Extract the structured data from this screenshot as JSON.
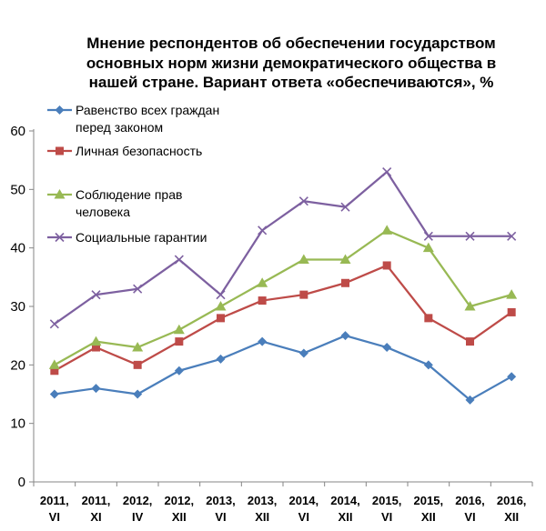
{
  "chart_data": {
    "type": "line",
    "title_lines": [
      "Мнение респондентов об обеспечении государством",
      "основных норм жизни демократического общества в",
      "нашей стране. Вариант ответа «обеспечиваются», %"
    ],
    "categories": [
      [
        "2011,",
        "VI"
      ],
      [
        "2011,",
        "XI"
      ],
      [
        "2012,",
        "IV"
      ],
      [
        "2012,",
        "XII"
      ],
      [
        "2013,",
        "VI"
      ],
      [
        "2013,",
        "XII"
      ],
      [
        "2014,",
        "VI"
      ],
      [
        "2014,",
        "XII"
      ],
      [
        "2015,",
        "VI"
      ],
      [
        "2015,",
        "XII"
      ],
      [
        "2016,",
        "VI"
      ],
      [
        "2016,",
        "XII"
      ]
    ],
    "ylim": [
      0,
      60
    ],
    "yticks": [
      "0",
      "10",
      "20",
      "30",
      "40",
      "50",
      "60"
    ],
    "grid": false,
    "legend_position": "top-left",
    "series": [
      {
        "name_lines": [
          "Равенство всех граждан",
          "перед законом"
        ],
        "color": "#4A7EBB",
        "marker": "diamond",
        "values": [
          15,
          16,
          15,
          19,
          21,
          24,
          22,
          25,
          23,
          20,
          14,
          18
        ]
      },
      {
        "name_lines": [
          "Личная безопасность"
        ],
        "color": "#BE4B48",
        "marker": "square",
        "values": [
          19,
          23,
          20,
          24,
          28,
          31,
          32,
          34,
          37,
          28,
          24,
          29
        ]
      },
      {
        "name_lines": [
          "Соблюдение прав",
          "человека"
        ],
        "color": "#98B954",
        "marker": "triangle",
        "values": [
          20,
          24,
          23,
          26,
          30,
          34,
          38,
          38,
          43,
          40,
          30,
          32
        ]
      },
      {
        "name_lines": [
          "Социальные гарантии"
        ],
        "color": "#7D60A0",
        "marker": "x",
        "values": [
          27,
          32,
          33,
          38,
          32,
          43,
          48,
          47,
          53,
          42,
          42,
          42
        ]
      }
    ]
  }
}
